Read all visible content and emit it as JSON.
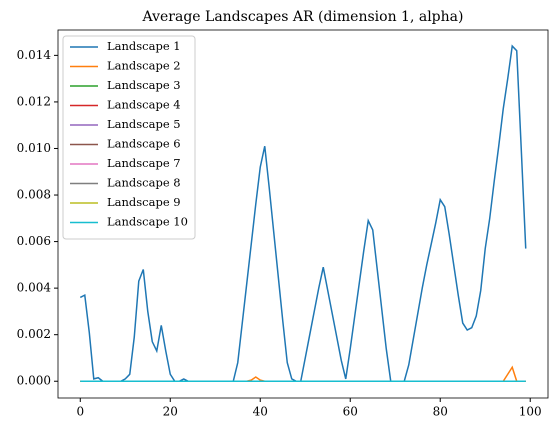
{
  "chart_data": {
    "type": "line",
    "title": "Average Landscapes AR (dimension 1, alpha)",
    "x": [
      0,
      1,
      2,
      3,
      4,
      5,
      6,
      7,
      8,
      9,
      10,
      11,
      12,
      13,
      14,
      15,
      16,
      17,
      18,
      19,
      20,
      21,
      22,
      23,
      24,
      25,
      26,
      27,
      28,
      29,
      30,
      31,
      32,
      33,
      34,
      35,
      36,
      37,
      38,
      39,
      40,
      41,
      42,
      43,
      44,
      45,
      46,
      47,
      48,
      49,
      50,
      51,
      52,
      53,
      54,
      55,
      56,
      57,
      58,
      59,
      60,
      61,
      62,
      63,
      64,
      65,
      66,
      67,
      68,
      69,
      70,
      71,
      72,
      73,
      74,
      75,
      76,
      77,
      78,
      79,
      80,
      81,
      82,
      83,
      84,
      85,
      86,
      87,
      88,
      89,
      90,
      91,
      92,
      93,
      94,
      95,
      96,
      97,
      98,
      99
    ],
    "series": [
      {
        "name": "Landscape 1",
        "color": "#1f77b4",
        "values": [
          0.0036,
          0.0037,
          0.0021,
          0.0001,
          0.00015,
          0,
          0,
          0,
          0,
          0,
          0.0001,
          0.0003,
          0.0019,
          0.0043,
          0.0048,
          0.003,
          0.0017,
          0.0013,
          0.0024,
          0.0013,
          0.0003,
          0,
          0,
          0.0001,
          0,
          0,
          0,
          0,
          0,
          0,
          0,
          0,
          0,
          0,
          0,
          0.0008,
          0.0025,
          0.0042,
          0.0059,
          0.0076,
          0.0092,
          0.0101,
          0.0083,
          0.0064,
          0.0045,
          0.0026,
          0.0008,
          0.0001,
          0,
          0,
          0.001,
          0.002,
          0.003,
          0.004,
          0.0049,
          0.0039,
          0.0029,
          0.0019,
          0.0009,
          0.0001,
          0.0014,
          0.0028,
          0.0042,
          0.0056,
          0.0069,
          0.0065,
          0.0048,
          0.0031,
          0.0014,
          0,
          0,
          0,
          0,
          0.0007,
          0.0018,
          0.0029,
          0.004,
          0.005,
          0.0059,
          0.0068,
          0.0078,
          0.0075,
          0.0063,
          0.005,
          0.0037,
          0.0025,
          0.0022,
          0.0023,
          0.0028,
          0.0039,
          0.0057,
          0.007,
          0.0086,
          0.0101,
          0.0117,
          0.013,
          0.0144,
          0.0142,
          0.01,
          0.0057
        ]
      },
      {
        "name": "Landscape 2",
        "color": "#ff7f0e",
        "values": [
          0,
          0,
          0,
          0,
          0,
          0,
          0,
          0,
          0,
          0,
          0,
          0,
          0,
          0,
          0,
          0,
          0,
          0,
          0,
          0,
          0,
          0,
          0,
          0,
          0,
          0,
          0,
          0,
          0,
          0,
          0,
          0,
          0,
          0,
          0,
          0,
          0,
          0,
          5e-05,
          0.00018,
          5e-05,
          0,
          0,
          0,
          0,
          0,
          0,
          0,
          0,
          0,
          0,
          0,
          0,
          0,
          0,
          0,
          0,
          0,
          0,
          0,
          0,
          0,
          0,
          0,
          0,
          0,
          0,
          0,
          0,
          0,
          0,
          0,
          0,
          0,
          0,
          0,
          0,
          0,
          0,
          0,
          0,
          0,
          0,
          0,
          0,
          0,
          0,
          0,
          0,
          0,
          0,
          0,
          0,
          0,
          0,
          0.0003,
          0.0006,
          0,
          0,
          0
        ]
      },
      {
        "name": "Landscape 3",
        "color": "#2ca02c",
        "values": [
          0,
          0,
          0,
          0,
          0,
          0,
          0,
          0,
          0,
          0,
          0,
          0,
          0,
          0,
          0,
          0,
          0,
          0,
          0,
          0,
          0,
          0,
          0,
          0,
          0,
          0,
          0,
          0,
          0,
          0,
          0,
          0,
          0,
          0,
          0,
          0,
          0,
          0,
          0,
          0,
          0,
          0,
          0,
          0,
          0,
          0,
          0,
          0,
          0,
          0,
          0,
          0,
          0,
          0,
          0,
          0,
          0,
          0,
          0,
          0,
          0,
          0,
          0,
          0,
          0,
          0,
          0,
          0,
          0,
          0,
          0,
          0,
          0,
          0,
          0,
          0,
          0,
          0,
          0,
          0,
          0,
          0,
          0,
          0,
          0,
          0,
          0,
          0,
          0,
          0,
          0,
          0,
          0,
          0,
          0,
          0,
          0,
          0,
          0,
          0
        ]
      },
      {
        "name": "Landscape 4",
        "color": "#d62728",
        "values": [
          0,
          0,
          0,
          0,
          0,
          0,
          0,
          0,
          0,
          0,
          0,
          0,
          0,
          0,
          0,
          0,
          0,
          0,
          0,
          0,
          0,
          0,
          0,
          0,
          0,
          0,
          0,
          0,
          0,
          0,
          0,
          0,
          0,
          0,
          0,
          0,
          0,
          0,
          0,
          0,
          0,
          0,
          0,
          0,
          0,
          0,
          0,
          0,
          0,
          0,
          0,
          0,
          0,
          0,
          0,
          0,
          0,
          0,
          0,
          0,
          0,
          0,
          0,
          0,
          0,
          0,
          0,
          0,
          0,
          0,
          0,
          0,
          0,
          0,
          0,
          0,
          0,
          0,
          0,
          0,
          0,
          0,
          0,
          0,
          0,
          0,
          0,
          0,
          0,
          0,
          0,
          0,
          0,
          0,
          0,
          0,
          0,
          0,
          0,
          0
        ]
      },
      {
        "name": "Landscape 5",
        "color": "#9467bd",
        "values": [
          0,
          0,
          0,
          0,
          0,
          0,
          0,
          0,
          0,
          0,
          0,
          0,
          0,
          0,
          0,
          0,
          0,
          0,
          0,
          0,
          0,
          0,
          0,
          0,
          0,
          0,
          0,
          0,
          0,
          0,
          0,
          0,
          0,
          0,
          0,
          0,
          0,
          0,
          0,
          0,
          0,
          0,
          0,
          0,
          0,
          0,
          0,
          0,
          0,
          0,
          0,
          0,
          0,
          0,
          0,
          0,
          0,
          0,
          0,
          0,
          0,
          0,
          0,
          0,
          0,
          0,
          0,
          0,
          0,
          0,
          0,
          0,
          0,
          0,
          0,
          0,
          0,
          0,
          0,
          0,
          0,
          0,
          0,
          0,
          0,
          0,
          0,
          0,
          0,
          0,
          0,
          0,
          0,
          0,
          0,
          0,
          0,
          0,
          0,
          0
        ]
      },
      {
        "name": "Landscape 6",
        "color": "#8c564b",
        "values": [
          0,
          0,
          0,
          0,
          0,
          0,
          0,
          0,
          0,
          0,
          0,
          0,
          0,
          0,
          0,
          0,
          0,
          0,
          0,
          0,
          0,
          0,
          0,
          0,
          0,
          0,
          0,
          0,
          0,
          0,
          0,
          0,
          0,
          0,
          0,
          0,
          0,
          0,
          0,
          0,
          0,
          0,
          0,
          0,
          0,
          0,
          0,
          0,
          0,
          0,
          0,
          0,
          0,
          0,
          0,
          0,
          0,
          0,
          0,
          0,
          0,
          0,
          0,
          0,
          0,
          0,
          0,
          0,
          0,
          0,
          0,
          0,
          0,
          0,
          0,
          0,
          0,
          0,
          0,
          0,
          0,
          0,
          0,
          0,
          0,
          0,
          0,
          0,
          0,
          0,
          0,
          0,
          0,
          0,
          0,
          0,
          0,
          0,
          0,
          0
        ]
      },
      {
        "name": "Landscape 7",
        "color": "#e377c2",
        "values": [
          0,
          0,
          0,
          0,
          0,
          0,
          0,
          0,
          0,
          0,
          0,
          0,
          0,
          0,
          0,
          0,
          0,
          0,
          0,
          0,
          0,
          0,
          0,
          0,
          0,
          0,
          0,
          0,
          0,
          0,
          0,
          0,
          0,
          0,
          0,
          0,
          0,
          0,
          0,
          0,
          0,
          0,
          0,
          0,
          0,
          0,
          0,
          0,
          0,
          0,
          0,
          0,
          0,
          0,
          0,
          0,
          0,
          0,
          0,
          0,
          0,
          0,
          0,
          0,
          0,
          0,
          0,
          0,
          0,
          0,
          0,
          0,
          0,
          0,
          0,
          0,
          0,
          0,
          0,
          0,
          0,
          0,
          0,
          0,
          0,
          0,
          0,
          0,
          0,
          0,
          0,
          0,
          0,
          0,
          0,
          0,
          0,
          0,
          0,
          0
        ]
      },
      {
        "name": "Landscape 8",
        "color": "#7f7f7f",
        "values": [
          0,
          0,
          0,
          0,
          0,
          0,
          0,
          0,
          0,
          0,
          0,
          0,
          0,
          0,
          0,
          0,
          0,
          0,
          0,
          0,
          0,
          0,
          0,
          0,
          0,
          0,
          0,
          0,
          0,
          0,
          0,
          0,
          0,
          0,
          0,
          0,
          0,
          0,
          0,
          0,
          0,
          0,
          0,
          0,
          0,
          0,
          0,
          0,
          0,
          0,
          0,
          0,
          0,
          0,
          0,
          0,
          0,
          0,
          0,
          0,
          0,
          0,
          0,
          0,
          0,
          0,
          0,
          0,
          0,
          0,
          0,
          0,
          0,
          0,
          0,
          0,
          0,
          0,
          0,
          0,
          0,
          0,
          0,
          0,
          0,
          0,
          0,
          0,
          0,
          0,
          0,
          0,
          0,
          0,
          0,
          0,
          0,
          0,
          0,
          0
        ]
      },
      {
        "name": "Landscape 9",
        "color": "#bcbd22",
        "values": [
          0,
          0,
          0,
          0,
          0,
          0,
          0,
          0,
          0,
          0,
          0,
          0,
          0,
          0,
          0,
          0,
          0,
          0,
          0,
          0,
          0,
          0,
          0,
          0,
          0,
          0,
          0,
          0,
          0,
          0,
          0,
          0,
          0,
          0,
          0,
          0,
          0,
          0,
          0,
          0,
          0,
          0,
          0,
          0,
          0,
          0,
          0,
          0,
          0,
          0,
          0,
          0,
          0,
          0,
          0,
          0,
          0,
          0,
          0,
          0,
          0,
          0,
          0,
          0,
          0,
          0,
          0,
          0,
          0,
          0,
          0,
          0,
          0,
          0,
          0,
          0,
          0,
          0,
          0,
          0,
          0,
          0,
          0,
          0,
          0,
          0,
          0,
          0,
          0,
          0,
          0,
          0,
          0,
          0,
          0,
          0,
          0,
          0,
          0,
          0
        ]
      },
      {
        "name": "Landscape 10",
        "color": "#17becf",
        "values": [
          0,
          0,
          0,
          0,
          0,
          0,
          0,
          0,
          0,
          0,
          0,
          0,
          0,
          0,
          0,
          0,
          0,
          0,
          0,
          0,
          0,
          0,
          0,
          0,
          0,
          0,
          0,
          0,
          0,
          0,
          0,
          0,
          0,
          0,
          0,
          0,
          0,
          0,
          0,
          0,
          0,
          0,
          0,
          0,
          0,
          0,
          0,
          0,
          0,
          0,
          0,
          0,
          0,
          0,
          0,
          0,
          0,
          0,
          0,
          0,
          0,
          0,
          0,
          0,
          0,
          0,
          0,
          0,
          0,
          0,
          0,
          0,
          0,
          0,
          0,
          0,
          0,
          0,
          0,
          0,
          0,
          0,
          0,
          0,
          0,
          0,
          0,
          0,
          0,
          0,
          0,
          0,
          0,
          0,
          0,
          0,
          0,
          0,
          0,
          0
        ]
      }
    ],
    "xlim": [
      -4.95,
      103.95
    ],
    "xticks": [
      0,
      20,
      40,
      60,
      80,
      100
    ],
    "ylim": [
      -0.00072,
      0.01509
    ],
    "yticks": [
      {
        "value": 0,
        "label": "0.000"
      },
      {
        "value": 0.002,
        "label": "0.002"
      },
      {
        "value": 0.004,
        "label": "0.004"
      },
      {
        "value": 0.006,
        "label": "0.006"
      },
      {
        "value": 0.008,
        "label": "0.008"
      },
      {
        "value": 0.01,
        "label": "0.010"
      },
      {
        "value": 0.012,
        "label": "0.012"
      },
      {
        "value": 0.014,
        "label": "0.014"
      }
    ],
    "legend": "upper left"
  }
}
